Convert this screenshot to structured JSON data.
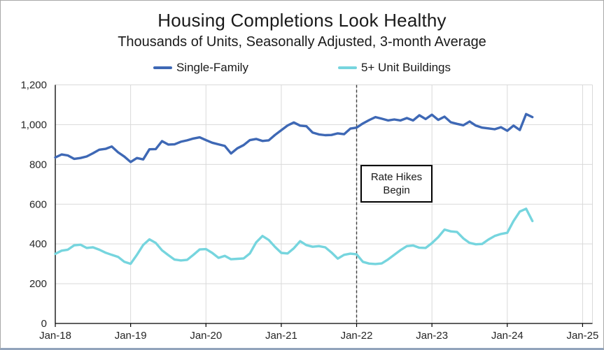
{
  "page": {
    "title": "Housing Completions Look Healthy",
    "subtitle": "Thousands of Units, Seasonally Adjusted, 3-month Average"
  },
  "legend": {
    "items": [
      {
        "label": "Single-Family",
        "color": "#3e68b5"
      },
      {
        "label": "5+ Unit Buildings",
        "color": "#76d5de"
      }
    ]
  },
  "annotation": {
    "line1": "Rate Hikes",
    "line2": "Begin",
    "marker": "dashed-vertical-line-at-Jan-22"
  },
  "chart_data": {
    "type": "line",
    "title": "Housing Completions Look Healthy",
    "subtitle": "Thousands of Units, Seasonally Adjusted, 3-month Average",
    "x_unit": "month",
    "x_start": "Jan-2018",
    "x_end": "May-2024",
    "x_tick_labels": [
      "Jan-18",
      "Jan-19",
      "Jan-20",
      "Jan-21",
      "Jan-22",
      "Jan-23",
      "Jan-24",
      "Jan-25"
    ],
    "y_ticks": [
      0,
      200,
      400,
      600,
      800,
      1000,
      1200
    ],
    "y_tick_labels": [
      "0",
      "200",
      "400",
      "600",
      "800",
      "1,000",
      "1,200"
    ],
    "ylim": [
      0,
      1200
    ],
    "grid": true,
    "legend_position": "top",
    "annotation_line_x": "Jan-22",
    "series": [
      {
        "name": "Single-Family",
        "color": "#3e68b5",
        "values": [
          835,
          850,
          845,
          828,
          832,
          840,
          856,
          874,
          878,
          890,
          861,
          839,
          812,
          832,
          825,
          876,
          877,
          917,
          900,
          901,
          914,
          921,
          930,
          936,
          922,
          909,
          901,
          893,
          855,
          881,
          897,
          922,
          928,
          918,
          921,
          948,
          972,
          996,
          1011,
          995,
          992,
          960,
          951,
          947,
          948,
          956,
          952,
          980,
          985,
          1006,
          1023,
          1038,
          1030,
          1021,
          1026,
          1021,
          1033,
          1021,
          1047,
          1028,
          1050,
          1024,
          1040,
          1012,
          1004,
          997,
          1016,
          995,
          985,
          981,
          977,
          987,
          969,
          995,
          973,
          1053,
          1038
        ]
      },
      {
        "name": "5+ Unit Buildings",
        "color": "#76d5de",
        "values": [
          350,
          366,
          371,
          393,
          396,
          380,
          383,
          371,
          356,
          345,
          335,
          310,
          300,
          345,
          395,
          423,
          405,
          368,
          344,
          321,
          317,
          320,
          345,
          372,
          374,
          355,
          330,
          340,
          323,
          325,
          327,
          352,
          408,
          440,
          420,
          385,
          355,
          352,
          378,
          414,
          394,
          386,
          389,
          383,
          357,
          326,
          345,
          351,
          348,
          310,
          301,
          299,
          302,
          322,
          345,
          369,
          389,
          392,
          381,
          380,
          404,
          434,
          472,
          463,
          460,
          428,
          405,
          398,
          400,
          422,
          440,
          450,
          456,
          515,
          563,
          577,
          515
        ]
      }
    ]
  }
}
